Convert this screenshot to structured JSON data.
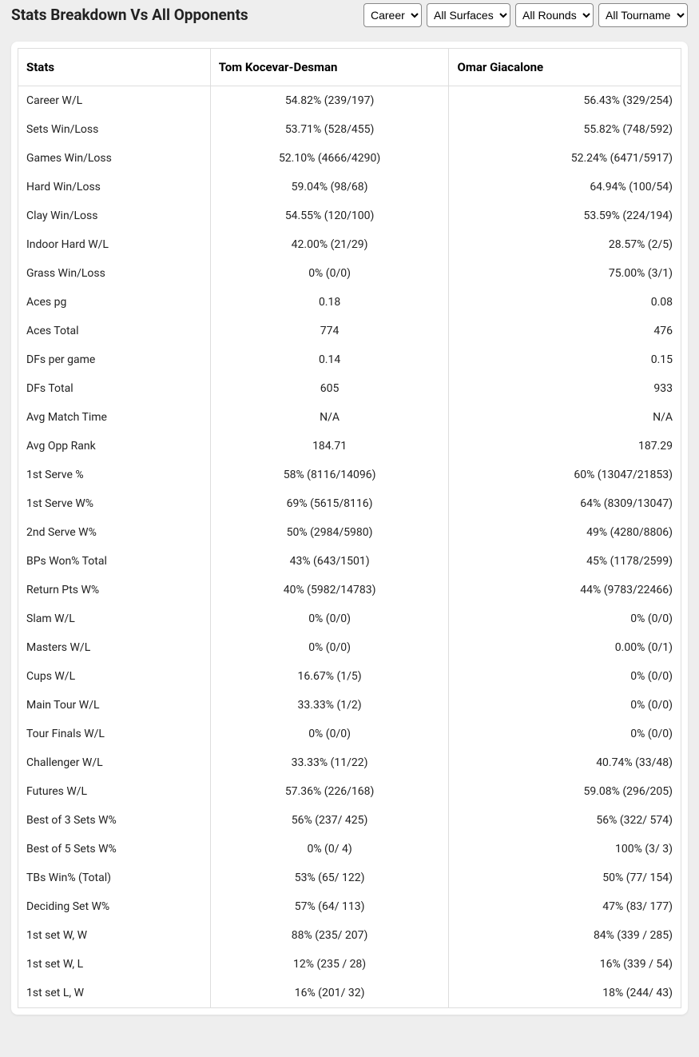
{
  "header": {
    "title": "Stats Breakdown Vs All Opponents"
  },
  "filters": {
    "period": {
      "selected": "Career",
      "options": [
        "Career"
      ]
    },
    "surface": {
      "selected": "All Surfaces",
      "options": [
        "All Surfaces"
      ]
    },
    "round": {
      "selected": "All Rounds",
      "options": [
        "All Rounds"
      ]
    },
    "tournament": {
      "selected": "All Tournaments",
      "options": [
        "All Tournaments"
      ]
    }
  },
  "table": {
    "columns": [
      "Stats",
      "Tom Kocevar-Desman",
      "Omar Giacalone"
    ],
    "rows": [
      [
        "Career W/L",
        "54.82% (239/197)",
        "56.43% (329/254)"
      ],
      [
        "Sets Win/Loss",
        "53.71% (528/455)",
        "55.82% (748/592)"
      ],
      [
        "Games Win/Loss",
        "52.10% (4666/4290)",
        "52.24% (6471/5917)"
      ],
      [
        "Hard Win/Loss",
        "59.04% (98/68)",
        "64.94% (100/54)"
      ],
      [
        "Clay Win/Loss",
        "54.55% (120/100)",
        "53.59% (224/194)"
      ],
      [
        "Indoor Hard W/L",
        "42.00% (21/29)",
        "28.57% (2/5)"
      ],
      [
        "Grass Win/Loss",
        "0% (0/0)",
        "75.00% (3/1)"
      ],
      [
        "Aces pg",
        "0.18",
        "0.08"
      ],
      [
        "Aces Total",
        "774",
        "476"
      ],
      [
        "DFs per game",
        "0.14",
        "0.15"
      ],
      [
        "DFs Total",
        "605",
        "933"
      ],
      [
        "Avg Match Time",
        "N/A",
        "N/A"
      ],
      [
        "Avg Opp Rank",
        "184.71",
        "187.29"
      ],
      [
        "1st Serve %",
        "58% (8116/14096)",
        "60% (13047/21853)"
      ],
      [
        "1st Serve W%",
        "69% (5615/8116)",
        "64% (8309/13047)"
      ],
      [
        "2nd Serve W%",
        "50% (2984/5980)",
        "49% (4280/8806)"
      ],
      [
        "BPs Won% Total",
        "43% (643/1501)",
        "45% (1178/2599)"
      ],
      [
        "Return Pts W%",
        "40% (5982/14783)",
        "44% (9783/22466)"
      ],
      [
        "Slam W/L",
        "0% (0/0)",
        "0% (0/0)"
      ],
      [
        "Masters W/L",
        "0% (0/0)",
        "0.00% (0/1)"
      ],
      [
        "Cups W/L",
        "16.67% (1/5)",
        "0% (0/0)"
      ],
      [
        "Main Tour W/L",
        "33.33% (1/2)",
        "0% (0/0)"
      ],
      [
        "Tour Finals W/L",
        "0% (0/0)",
        "0% (0/0)"
      ],
      [
        "Challenger W/L",
        "33.33% (11/22)",
        "40.74% (33/48)"
      ],
      [
        "Futures W/L",
        "57.36% (226/168)",
        "59.08% (296/205)"
      ],
      [
        "Best of 3 Sets W%",
        "56% (237/ 425)",
        "56% (322/ 574)"
      ],
      [
        "Best of 5 Sets W%",
        "0% (0/ 4)",
        "100% (3/ 3)"
      ],
      [
        "TBs Win% (Total)",
        "53% (65/ 122)",
        "50% (77/ 154)"
      ],
      [
        "Deciding Set W%",
        "57% (64/ 113)",
        "47% (83/ 177)"
      ],
      [
        "1st set W, W",
        "88% (235/ 207)",
        "84% (339 / 285)"
      ],
      [
        "1st set W, L",
        "12% (235 / 28)",
        "16% (339 / 54)"
      ],
      [
        "1st set L, W",
        "16% (201/ 32)",
        "18% (244/ 43)"
      ]
    ]
  }
}
